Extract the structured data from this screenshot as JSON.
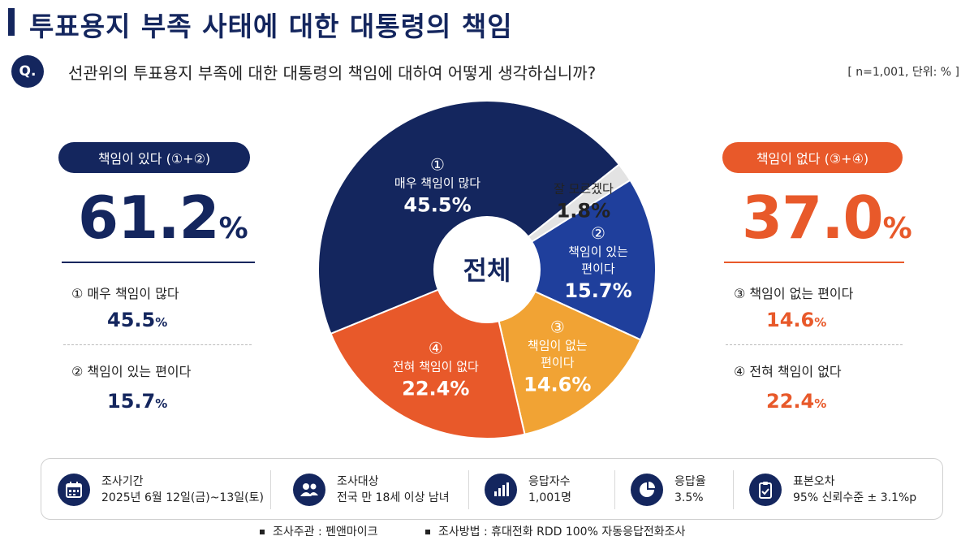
{
  "title": "투표용지 부족 사태에 대한 대통령의 책임",
  "question_badge": "Q.",
  "question": "선관위의 투표용지 부족에 대한 대통령의 책임에 대하여 어떻게 생각하십니까?",
  "sample_note": "[ n=1,001, 단위: % ]",
  "left_group": {
    "label": "책임이 있다 (①+②)",
    "total": "61.2",
    "pct": "%",
    "items": [
      {
        "label": "① 매우 책임이 많다",
        "value": "45.5",
        "pct": "%"
      },
      {
        "label": "② 책임이 있는 편이다",
        "value": "15.7",
        "pct": "%"
      }
    ]
  },
  "right_group": {
    "label": "책임이 없다 (③+④)",
    "total": "37.0",
    "pct": "%",
    "items": [
      {
        "label": "③ 책임이 없는 편이다",
        "value": "14.6",
        "pct": "%"
      },
      {
        "label": "④ 전혀 책임이 없다",
        "value": "22.4",
        "pct": "%"
      }
    ]
  },
  "chart_data": {
    "type": "pie",
    "center_label": "전체",
    "unit": "%",
    "slices": [
      {
        "num": "②",
        "label": "책임이 있는 편이다",
        "lines": [
          "책임이 있는",
          "편이다"
        ],
        "value": 15.7,
        "value_text": "15.7%",
        "color": "#1f3f9c"
      },
      {
        "num": "③",
        "label": "책임이 없는 편이다",
        "lines": [
          "책임이 없는",
          "편이다"
        ],
        "value": 14.6,
        "value_text": "14.6%",
        "color": "#f1a334"
      },
      {
        "num": "④",
        "label": "전혀 책임이 없다",
        "lines": [
          "전혀 책임이 없다"
        ],
        "value": 22.4,
        "value_text": "22.4%",
        "color": "#e8592a"
      },
      {
        "num": "①",
        "label": "매우 책임이 많다",
        "lines": [
          "매우 책임이 많다"
        ],
        "value": 45.5,
        "value_text": "45.5%",
        "color": "#14265e"
      },
      {
        "num": "",
        "label": "잘 모르겠다",
        "lines": [
          "잘 모르겠다"
        ],
        "value": 1.8,
        "value_text": "1.8%",
        "color": "#e3e3e3"
      }
    ]
  },
  "survey_info": {
    "items": [
      {
        "icon": "calendar-icon",
        "title": "조사기간",
        "value": "2025년 6월 12일(금)~13일(토)"
      },
      {
        "icon": "people-icon",
        "title": "조사대상",
        "value": "전국 만 18세 이상 남녀"
      },
      {
        "icon": "bar-chart-icon",
        "title": "응답자수",
        "value": "1,001명"
      },
      {
        "icon": "pie-chart-icon",
        "title": "응답율",
        "value": "3.5%"
      },
      {
        "icon": "clipboard-icon",
        "title": "표본오차",
        "value": "95% 신뢰수준 ± 3.1%p"
      }
    ]
  },
  "footer": {
    "sponsor": "조사주관  :  펜앤마이크",
    "method": "조사방법  :  휴대전화 RDD 100% 자동응답전화조사"
  }
}
